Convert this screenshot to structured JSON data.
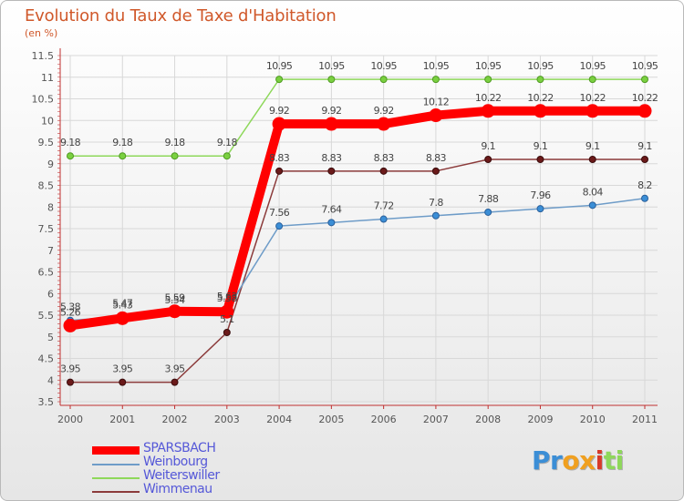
{
  "chart_data": {
    "type": "line",
    "title": "Evolution du Taux de Taxe d'Habitation",
    "subtitle": "(en %)",
    "xlabel": "",
    "ylabel": "",
    "categories": [
      "2000",
      "2001",
      "2002",
      "2003",
      "2004",
      "2005",
      "2006",
      "2007",
      "2008",
      "2009",
      "2010",
      "2011"
    ],
    "ylim": [
      3.5,
      11.5
    ],
    "yticks": [
      "3.5",
      "4",
      "4.5",
      "5",
      "5.5",
      "6",
      "6.5",
      "7",
      "7.5",
      "8",
      "8.5",
      "9",
      "9.5",
      "10",
      "10.5",
      "11",
      "11.5"
    ],
    "grid": true,
    "legend_position": "bottom-left",
    "series": [
      {
        "name": "SPARSBACH",
        "color": "#ff0000",
        "values": [
          5.26,
          5.43,
          5.59,
          5.58,
          9.92,
          9.92,
          9.92,
          10.12,
          10.22,
          10.22,
          10.22,
          10.22
        ],
        "labels": [
          "5.26",
          "5.43",
          "5.59",
          "5.58",
          "9.92",
          "9.92",
          "9.92",
          "10.12",
          "10.22",
          "10.22",
          "10.22",
          "10.22"
        ]
      },
      {
        "name": "Weinbourg",
        "color": "#6e9cc8",
        "values": [
          5.38,
          5.47,
          5.54,
          5.63,
          7.56,
          7.64,
          7.72,
          7.8,
          7.88,
          7.96,
          8.04,
          8.2
        ],
        "labels": [
          "5.38",
          "5.47",
          "5.54",
          "5.63",
          "7.56",
          "7.64",
          "7.72",
          "7.8",
          "7.88",
          "7.96",
          "8.04",
          "8.2"
        ]
      },
      {
        "name": "Weiterswiller",
        "color": "#8ed85a",
        "values": [
          9.18,
          9.18,
          9.18,
          9.18,
          10.95,
          10.95,
          10.95,
          10.95,
          10.95,
          10.95,
          10.95,
          10.95
        ],
        "labels": [
          "9.18",
          "9.18",
          "9.18",
          "9.18",
          "10.95",
          "10.95",
          "10.95",
          "10.95",
          "10.95",
          "10.95",
          "10.95",
          "10.95"
        ]
      },
      {
        "name": "Wimmenau",
        "color": "#8b3a3a",
        "values": [
          3.95,
          3.95,
          3.95,
          5.1,
          8.83,
          8.83,
          8.83,
          8.83,
          9.1,
          9.1,
          9.1,
          9.1
        ],
        "labels": [
          "3.95",
          "3.95",
          "3.95",
          "5.1",
          "8.83",
          "8.83",
          "8.83",
          "8.83",
          "9.1",
          "9.1",
          "9.1",
          "9.1"
        ]
      }
    ]
  },
  "logo": {
    "letters": [
      "P",
      "r",
      "o",
      "x",
      "i",
      "t",
      "i"
    ],
    "colors": [
      "#3b8ed6",
      "#3b8ed6",
      "#f0a020",
      "#f0a020",
      "#d83a2a",
      "#8ed85a",
      "#8ed85a"
    ]
  }
}
